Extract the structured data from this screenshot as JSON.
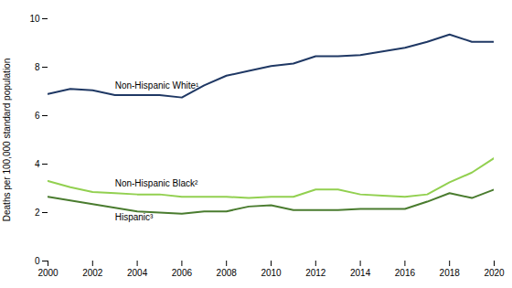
{
  "chart_data": {
    "type": "line",
    "ylabel": "Deaths per 100,000 standard population",
    "x": [
      2000,
      2001,
      2002,
      2003,
      2004,
      2005,
      2006,
      2007,
      2008,
      2009,
      2010,
      2011,
      2012,
      2013,
      2014,
      2015,
      2016,
      2017,
      2018,
      2019,
      2020
    ],
    "series": [
      {
        "name": "Non-Hispanic White¹",
        "color": "#1f3864",
        "values": [
          6.9,
          7.1,
          7.05,
          6.85,
          6.85,
          6.85,
          6.75,
          7.25,
          7.65,
          7.85,
          8.05,
          8.15,
          8.45,
          8.45,
          8.5,
          8.65,
          8.8,
          9.05,
          9.35,
          9.05,
          9.05
        ]
      },
      {
        "name": "Non-Hispanic Black²",
        "color": "#92d050",
        "values": [
          3.3,
          3.05,
          2.85,
          2.8,
          2.75,
          2.75,
          2.65,
          2.65,
          2.65,
          2.6,
          2.65,
          2.65,
          2.95,
          2.95,
          2.75,
          2.7,
          2.65,
          2.75,
          3.25,
          3.65,
          4.25
        ]
      },
      {
        "name": "Hispanic³",
        "color": "#4a7c2f",
        "values": [
          2.65,
          2.5,
          2.35,
          2.2,
          2.05,
          2.0,
          1.95,
          2.05,
          2.05,
          2.25,
          2.3,
          2.1,
          2.1,
          2.1,
          2.15,
          2.15,
          2.15,
          2.45,
          2.8,
          2.6,
          2.95
        ]
      }
    ],
    "xlim": [
      2000,
      2020
    ],
    "xticks": [
      2000,
      2002,
      2004,
      2006,
      2008,
      2010,
      2012,
      2014,
      2016,
      2018,
      2020
    ],
    "ylim": [
      0,
      10
    ],
    "yticks": [
      0,
      2,
      4,
      6,
      8,
      10
    ],
    "grid": false
  }
}
